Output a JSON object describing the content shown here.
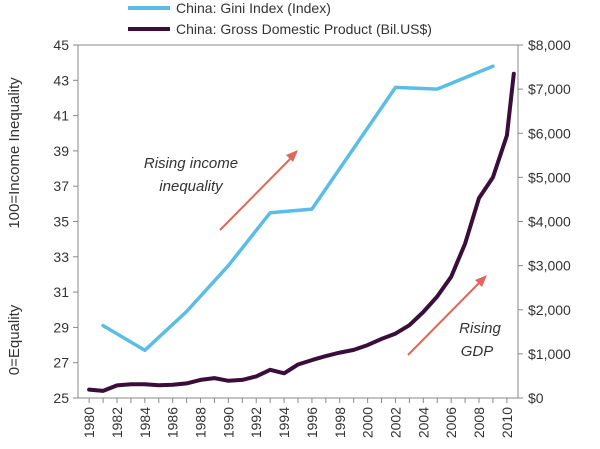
{
  "chart_data": {
    "type": "line",
    "title": "",
    "legend": [
      {
        "label": "China: Gini Index (Index)",
        "color": "#5bbde6"
      },
      {
        "label": "China: Gross Domestic Product (Bil.US$)",
        "color": "#3a0d3a"
      }
    ],
    "x": [
      1980,
      1981,
      1982,
      1983,
      1984,
      1985,
      1986,
      1987,
      1988,
      1989,
      1990,
      1991,
      1992,
      1993,
      1994,
      1995,
      1996,
      1997,
      1998,
      1999,
      2000,
      2001,
      2002,
      2003,
      2004,
      2005,
      2006,
      2007,
      2008,
      2009,
      2010
    ],
    "xticks": [
      "1980",
      "1982",
      "1984",
      "1986",
      "1988",
      "1990",
      "1992",
      "1994",
      "1996",
      "1998",
      "2000",
      "2002",
      "2004",
      "2006",
      "2008",
      "2010"
    ],
    "xlim": [
      1979.2,
      2010.8
    ],
    "series": [
      {
        "name": "China: Gini Index (Index)",
        "axis": "left",
        "points": [
          [
            1981,
            29.1
          ],
          [
            1984,
            27.7
          ],
          [
            1987,
            29.9
          ],
          [
            1990,
            32.5
          ],
          [
            1993,
            35.5
          ],
          [
            1996,
            35.7
          ],
          [
            2002,
            42.6
          ],
          [
            2005,
            42.5
          ],
          [
            2009,
            43.8
          ]
        ]
      },
      {
        "name": "China: Gross Domestic Product (Bil.US$)",
        "axis": "right",
        "points": [
          [
            1980,
            190
          ],
          [
            1981,
            160
          ],
          [
            1982,
            285
          ],
          [
            1983,
            310
          ],
          [
            1984,
            310
          ],
          [
            1985,
            290
          ],
          [
            1986,
            300
          ],
          [
            1987,
            330
          ],
          [
            1988,
            410
          ],
          [
            1989,
            450
          ],
          [
            1990,
            390
          ],
          [
            1991,
            410
          ],
          [
            1992,
            490
          ],
          [
            1993,
            640
          ],
          [
            1994,
            560
          ],
          [
            1995,
            760
          ],
          [
            1996,
            860
          ],
          [
            1997,
            950
          ],
          [
            1998,
            1030
          ],
          [
            1999,
            1090
          ],
          [
            2000,
            1200
          ],
          [
            2001,
            1340
          ],
          [
            2002,
            1460
          ],
          [
            2003,
            1650
          ],
          [
            2004,
            1950
          ],
          [
            2005,
            2300
          ],
          [
            2006,
            2750
          ],
          [
            2007,
            3500
          ],
          [
            2008,
            4530
          ],
          [
            2009,
            5000
          ],
          [
            2010,
            5950
          ],
          [
            2010.5,
            7350
          ]
        ]
      }
    ],
    "yleft": {
      "label_top": "100=Income Inequality",
      "label_bottom": "0=Equality",
      "ylim": [
        25,
        45
      ],
      "ticks": [
        25,
        27,
        29,
        31,
        33,
        35,
        37,
        39,
        41,
        43,
        45
      ],
      "tick_labels": [
        "25",
        "27",
        "29",
        "31",
        "33",
        "35",
        "37",
        "39",
        "41",
        "43",
        "45"
      ]
    },
    "yright": {
      "ylim": [
        0,
        8000
      ],
      "ticks": [
        0,
        1000,
        2000,
        3000,
        4000,
        5000,
        6000,
        7000,
        8000
      ],
      "tick_labels": [
        "$0",
        "$1,000",
        "$2,000",
        "$3,000",
        "$4,000",
        "$5,000",
        "$6,000",
        "$7,000",
        "$8,000"
      ]
    },
    "annotations": [
      {
        "lines": [
          "Rising income",
          "inequality"
        ],
        "arrow_color": "#e0685a"
      },
      {
        "lines": [
          "Rising",
          "GDP"
        ],
        "arrow_color": "#e0685a"
      }
    ],
    "grid": false
  }
}
